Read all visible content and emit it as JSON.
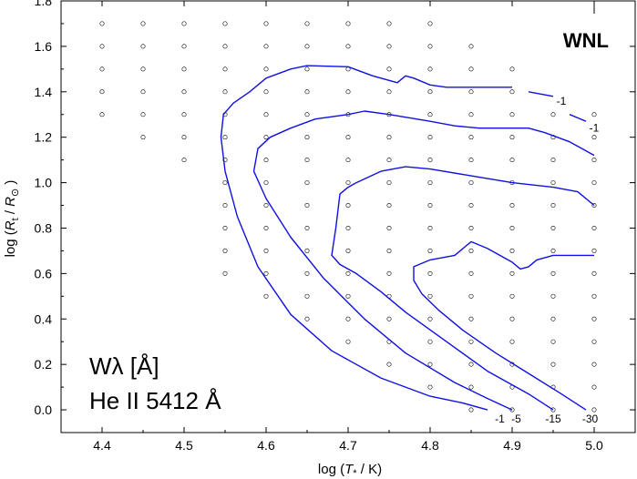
{
  "chart_data": {
    "type": "line",
    "panel_label": "WNL",
    "xlabel": "log (T* / K)",
    "ylabel": "log (Rt / R⊙)",
    "xlim": [
      4.35,
      5.05
    ],
    "ylim": [
      -0.1,
      1.8
    ],
    "xticks": [
      "4.4",
      "4.5",
      "4.6",
      "4.7",
      "4.8",
      "4.9",
      "5.0"
    ],
    "yticks": [
      "0.0",
      "0.2",
      "0.4",
      "0.6",
      "0.8",
      "1.0",
      "1.2",
      "1.4",
      "1.6",
      "1.8"
    ],
    "annotation_line1": "Wλ [Å]",
    "annotation_line2": "He II 5412 Å",
    "grid_points_x_step": 0.05,
    "grid_points_y_step": 0.1,
    "grid_points_rows": [
      {
        "y": 1.7,
        "x_min": 4.4,
        "x_max": 4.8
      },
      {
        "y": 1.6,
        "x_min": 4.4,
        "x_max": 4.85
      },
      {
        "y": 1.5,
        "x_min": 4.4,
        "x_max": 4.9
      },
      {
        "y": 1.4,
        "x_min": 4.4,
        "x_max": 4.9
      },
      {
        "y": 1.3,
        "x_min": 4.4,
        "x_max": 5.0
      },
      {
        "y": 1.2,
        "x_min": 4.45,
        "x_max": 5.0
      },
      {
        "y": 1.1,
        "x_min": 4.5,
        "x_max": 5.0
      },
      {
        "y": 1.0,
        "x_min": 4.55,
        "x_max": 5.0
      },
      {
        "y": 0.9,
        "x_min": 4.55,
        "x_max": 5.0
      },
      {
        "y": 0.8,
        "x_min": 4.55,
        "x_max": 5.0
      },
      {
        "y": 0.7,
        "x_min": 4.55,
        "x_max": 5.0
      },
      {
        "y": 0.6,
        "x_min": 4.55,
        "x_max": 5.0
      },
      {
        "y": 0.5,
        "x_min": 4.6,
        "x_max": 5.0
      },
      {
        "y": 0.4,
        "x_min": 4.65,
        "x_max": 5.0
      },
      {
        "y": 0.3,
        "x_min": 4.7,
        "x_max": 5.0
      },
      {
        "y": 0.2,
        "x_min": 4.75,
        "x_max": 5.0
      },
      {
        "y": 0.1,
        "x_min": 4.8,
        "x_max": 5.0
      },
      {
        "y": 0.0,
        "x_min": 4.85,
        "x_max": 5.0
      }
    ],
    "series": [
      {
        "name": "-1",
        "color": "#1010e0",
        "label_x": 4.885,
        "label_y": -0.04,
        "points": [
          [
            4.87,
            0.0
          ],
          [
            4.84,
            0.03
          ],
          [
            4.8,
            0.06
          ],
          [
            4.74,
            0.14
          ],
          [
            4.68,
            0.26
          ],
          [
            4.63,
            0.42
          ],
          [
            4.59,
            0.63
          ],
          [
            4.565,
            0.85
          ],
          [
            4.55,
            1.05
          ],
          [
            4.545,
            1.2
          ],
          [
            4.548,
            1.3
          ],
          [
            4.56,
            1.35
          ],
          [
            4.58,
            1.4
          ],
          [
            4.6,
            1.46
          ],
          [
            4.63,
            1.5
          ],
          [
            4.65,
            1.515
          ],
          [
            4.7,
            1.51
          ],
          [
            4.73,
            1.47
          ],
          [
            4.75,
            1.45
          ],
          [
            4.76,
            1.44
          ],
          [
            4.77,
            1.47
          ],
          [
            4.78,
            1.46
          ],
          [
            4.8,
            1.43
          ],
          [
            4.82,
            1.42
          ],
          [
            4.9,
            1.42
          ]
        ]
      },
      {
        "name": "-5",
        "color": "#1010e0",
        "label_x": 4.905,
        "label_y": -0.04,
        "points": [
          [
            4.9,
            0.0
          ],
          [
            4.87,
            0.05
          ],
          [
            4.83,
            0.12
          ],
          [
            4.77,
            0.25
          ],
          [
            4.72,
            0.4
          ],
          [
            4.67,
            0.58
          ],
          [
            4.63,
            0.76
          ],
          [
            4.6,
            0.93
          ],
          [
            4.585,
            1.05
          ],
          [
            4.59,
            1.15
          ],
          [
            4.605,
            1.2
          ],
          [
            4.63,
            1.24
          ],
          [
            4.66,
            1.28
          ],
          [
            4.7,
            1.3
          ],
          [
            4.72,
            1.315
          ],
          [
            4.75,
            1.3
          ],
          [
            4.8,
            1.27
          ],
          [
            4.83,
            1.25
          ],
          [
            4.86,
            1.24
          ],
          [
            4.9,
            1.24
          ],
          [
            4.92,
            1.24
          ],
          [
            4.94,
            1.22
          ],
          [
            4.97,
            1.18
          ],
          [
            5.0,
            1.12
          ]
        ]
      },
      {
        "name": "-15",
        "color": "#1010e0",
        "label_x": 4.95,
        "label_y": -0.04,
        "points": [
          [
            4.95,
            0.0
          ],
          [
            4.92,
            0.07
          ],
          [
            4.87,
            0.17
          ],
          [
            4.82,
            0.3
          ],
          [
            4.77,
            0.43
          ],
          [
            4.74,
            0.52
          ],
          [
            4.71,
            0.6
          ],
          [
            4.69,
            0.64
          ],
          [
            4.68,
            0.68
          ],
          [
            4.685,
            0.8
          ],
          [
            4.69,
            0.95
          ],
          [
            4.7,
            0.98
          ],
          [
            4.71,
            1.0
          ],
          [
            4.74,
            1.05
          ],
          [
            4.77,
            1.07
          ],
          [
            4.8,
            1.06
          ],
          [
            4.85,
            1.03
          ],
          [
            4.9,
            1.0
          ],
          [
            4.95,
            0.98
          ],
          [
            4.98,
            0.96
          ],
          [
            5.0,
            0.9
          ]
        ]
      },
      {
        "name": "-30",
        "color": "#1010e0",
        "label_x": 4.995,
        "label_y": -0.04,
        "points": [
          [
            4.99,
            0.0
          ],
          [
            4.96,
            0.07
          ],
          [
            4.92,
            0.16
          ],
          [
            4.88,
            0.25
          ],
          [
            4.84,
            0.35
          ],
          [
            4.81,
            0.44
          ],
          [
            4.79,
            0.51
          ],
          [
            4.78,
            0.57
          ],
          [
            4.78,
            0.63
          ],
          [
            4.8,
            0.66
          ],
          [
            4.83,
            0.68
          ],
          [
            4.85,
            0.74
          ],
          [
            4.87,
            0.71
          ],
          [
            4.9,
            0.65
          ],
          [
            4.91,
            0.62
          ],
          [
            4.92,
            0.63
          ],
          [
            4.93,
            0.66
          ],
          [
            4.95,
            0.68
          ],
          [
            5.0,
            0.68
          ]
        ]
      },
      {
        "name": "-1",
        "color": "#1010e0",
        "label_x": 4.96,
        "label_y": 1.36,
        "points": [
          [
            4.92,
            1.4
          ],
          [
            4.95,
            1.38
          ]
        ]
      },
      {
        "name": "-1",
        "color": "#1010e0",
        "label_x": 5.0,
        "label_y": 1.24,
        "points": [
          [
            4.97,
            1.3
          ],
          [
            4.99,
            1.27
          ]
        ]
      }
    ]
  }
}
